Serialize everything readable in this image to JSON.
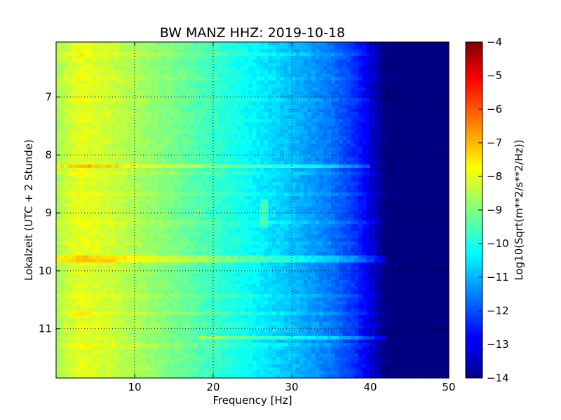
{
  "chart_data": {
    "type": "heatmap",
    "title": "BW MANZ HHZ: 2019-10-18",
    "xlabel": "Frequency [Hz]",
    "ylabel": "Lokalzeit (UTC + 2 Stunde)",
    "xlim": [
      0,
      50
    ],
    "ylim": [
      11.85,
      6.05
    ],
    "y_inverted": true,
    "grid": true,
    "x_ticks": [
      10,
      20,
      30,
      40,
      50
    ],
    "y_ticks": [
      7,
      8,
      9,
      10,
      11
    ],
    "colorbar": {
      "label": "Log10(Sqrt(m**2/s**2/Hz))",
      "colormap": "jet",
      "range": [
        -14,
        -4
      ],
      "ticks": [
        -4,
        -5,
        -6,
        -7,
        -8,
        -9,
        -10,
        -11,
        -12,
        -13,
        -14
      ]
    },
    "spectral_profile": {
      "frequency_hz": [
        0,
        3,
        6,
        10,
        15,
        20,
        25,
        30,
        35,
        38,
        40,
        41,
        42,
        50
      ],
      "log10_amplitude": [
        -8.6,
        -8.0,
        -8.2,
        -8.6,
        -9.1,
        -9.7,
        -10.3,
        -10.9,
        -11.6,
        -12.3,
        -13.0,
        -13.6,
        -14.0,
        -14.0
      ]
    },
    "features": [
      {
        "label": "bright horizontal band",
        "time_h": 8.2,
        "freq_range_hz": [
          0,
          40
        ]
      },
      {
        "label": "bright horizontal band",
        "time_h": 9.8,
        "freq_range_hz": [
          0,
          42
        ]
      },
      {
        "label": "bright horizontal band",
        "time_h": 11.15,
        "freq_range_hz": [
          18,
          42
        ]
      },
      {
        "label": "narrow spectral line",
        "time_range_h": [
          8.75,
          9.25
        ],
        "freq_hz": 26.5
      }
    ]
  }
}
